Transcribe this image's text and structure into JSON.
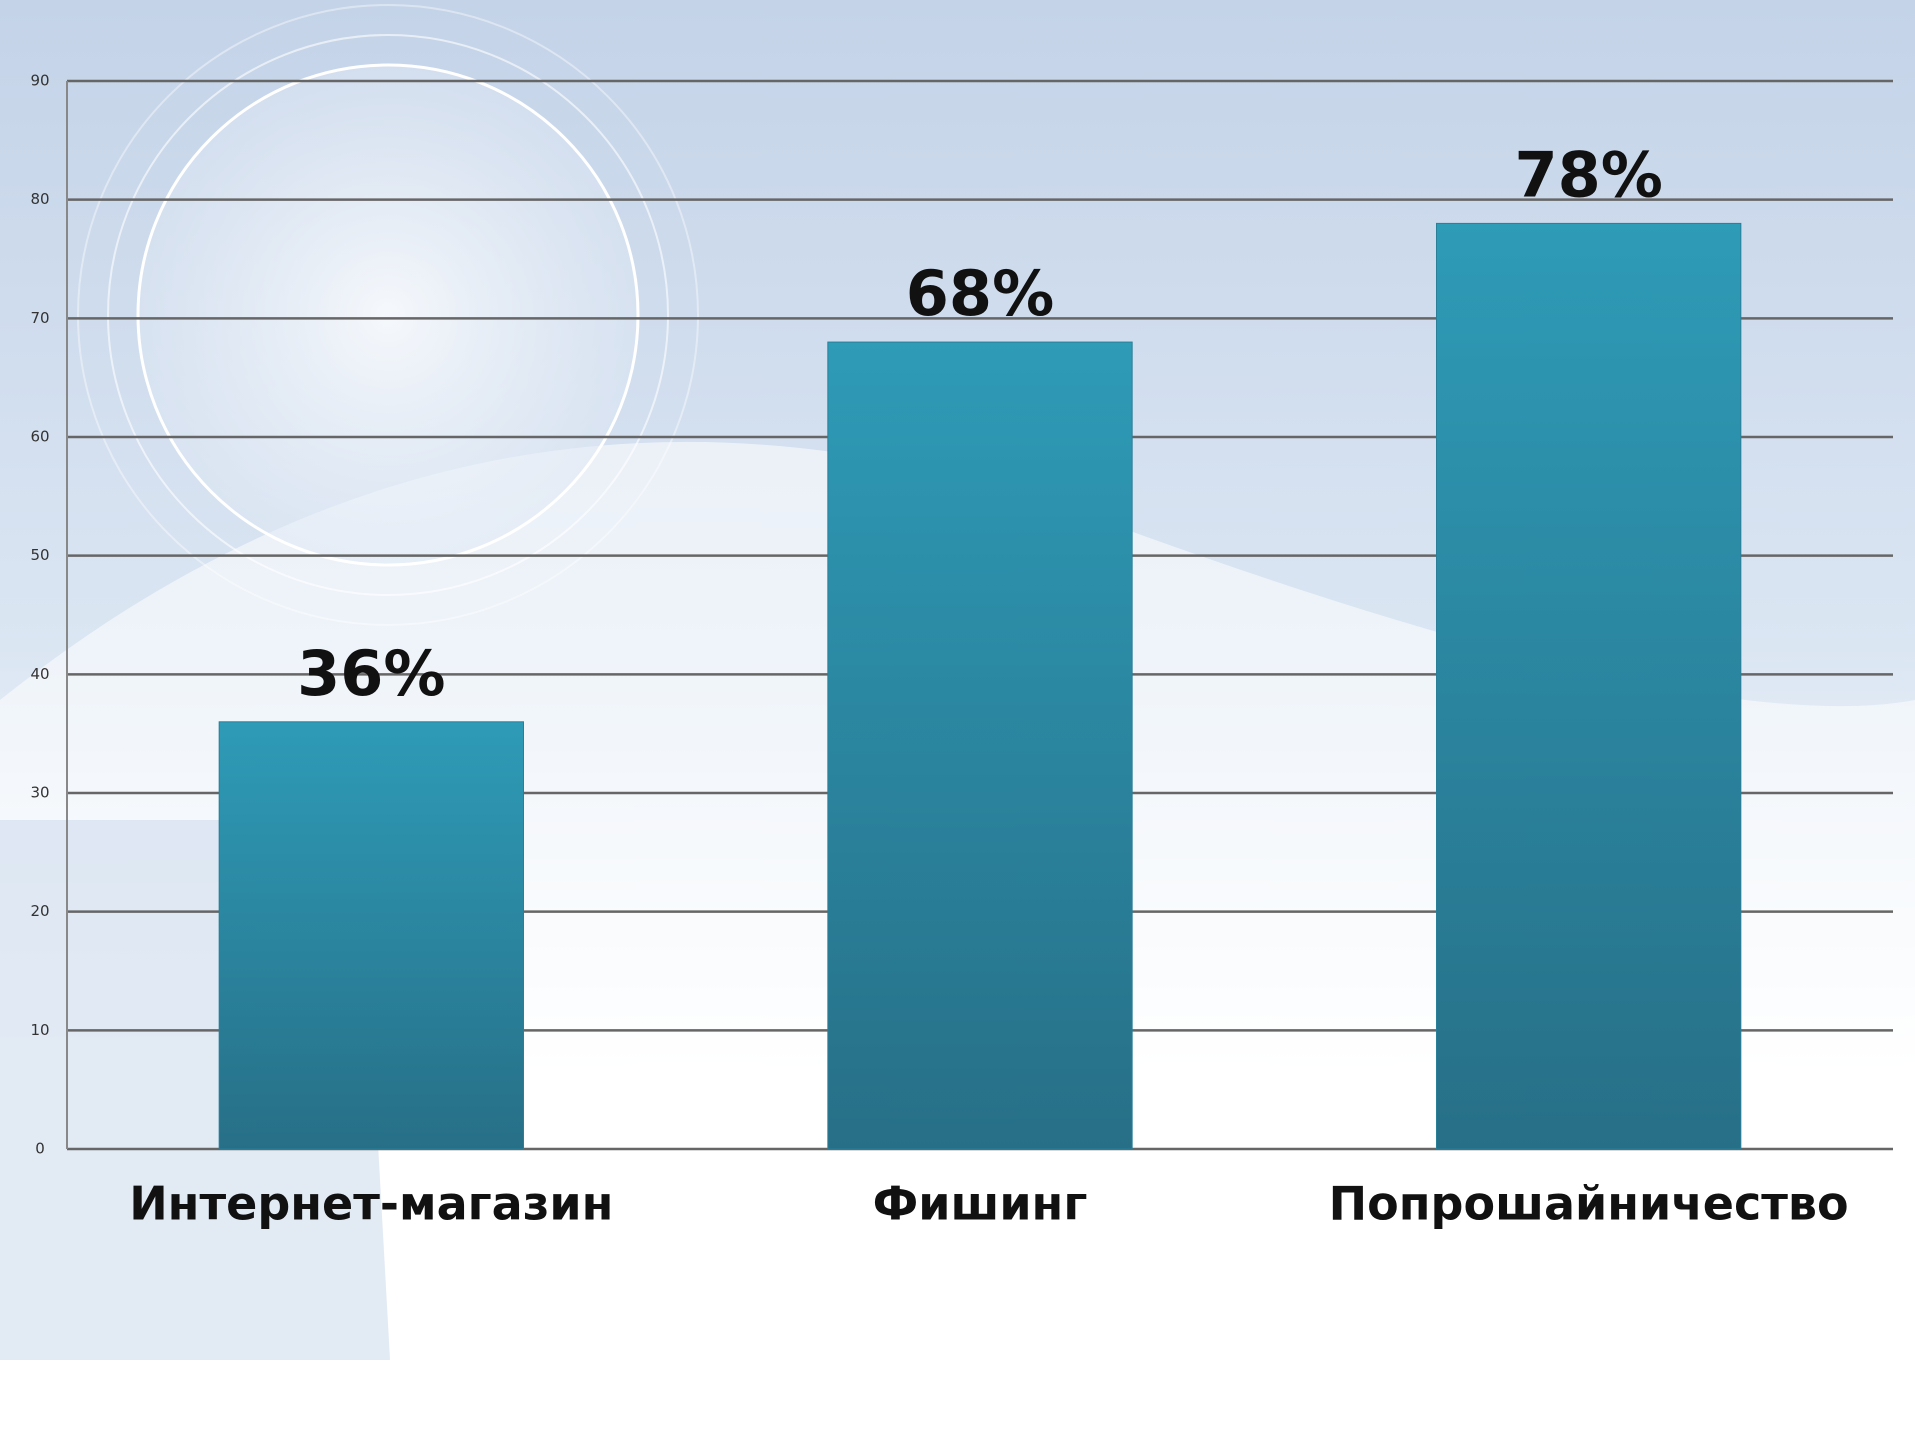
{
  "chart_data": {
    "type": "bar",
    "categories": [
      "Интернет-магазин",
      "Фишинг",
      "Попрошайничество"
    ],
    "values": [
      36,
      68,
      78
    ],
    "value_labels": [
      "36%",
      "68%",
      "78%"
    ],
    "color": "#2b8ca8",
    "ylim": [
      0,
      90
    ],
    "yticks": [
      0,
      10,
      20,
      30,
      40,
      50,
      60,
      70,
      80,
      90
    ],
    "grid": true
  }
}
